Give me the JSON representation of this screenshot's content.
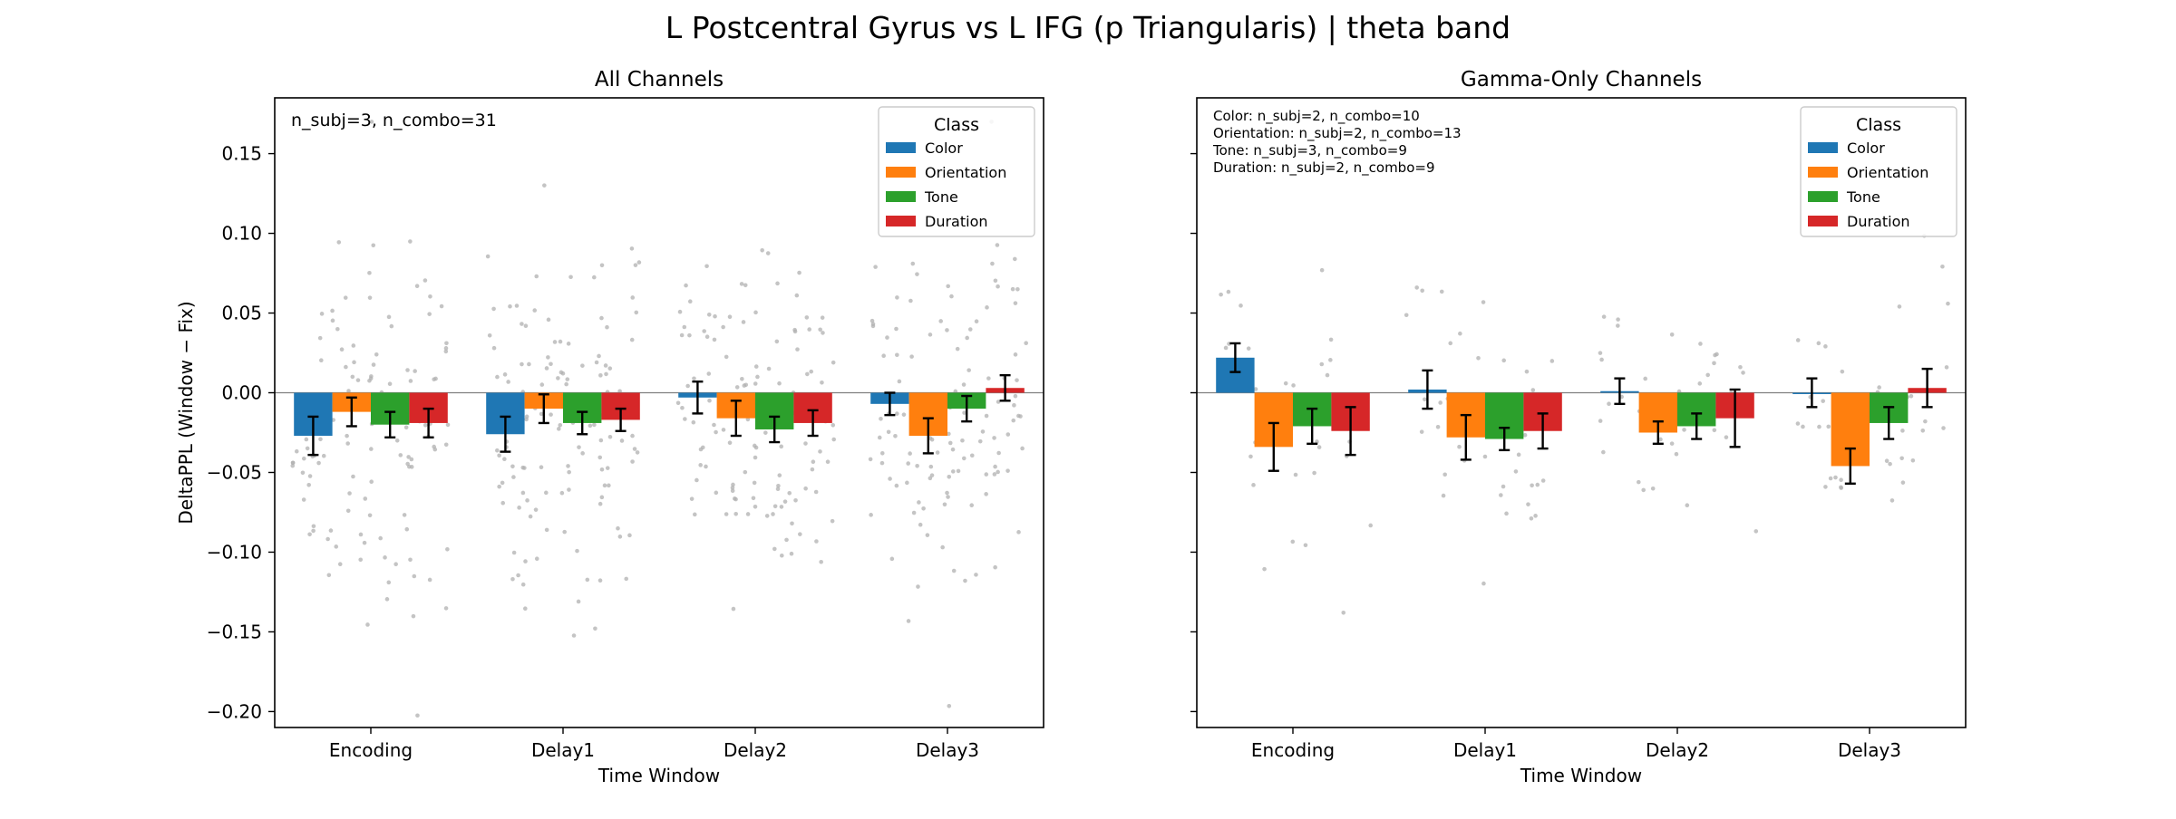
{
  "figure": {
    "title": "L Postcentral Gyrus vs L IFG (p Triangularis)  |  theta band"
  },
  "colors": {
    "Color": "#1f77b4",
    "Orientation": "#ff7f0e",
    "Tone": "#2ca02c",
    "Duration": "#d62728",
    "scatter": "#b0b0b0",
    "zero_line": "#808080"
  },
  "chart_data": [
    {
      "type": "bar",
      "title": "All Channels",
      "xlabel": "Time Window",
      "ylabel": "DeltaPPL (Window − Fix)",
      "ylim": [
        -0.21,
        0.185
      ],
      "yticks": [
        0.15,
        0.1,
        0.05,
        0.0,
        -0.05,
        -0.1,
        -0.15,
        -0.2
      ],
      "ytick_labels": [
        "0.15",
        "0.10",
        "0.05",
        "0.00",
        "−0.05",
        "−0.10",
        "−0.15",
        "−0.20"
      ],
      "categories": [
        "Encoding",
        "Delay1",
        "Delay2",
        "Delay3"
      ],
      "legend": {
        "title": "Class",
        "position": "top-right"
      },
      "annotation": [
        "n_subj=3, n_combo=31"
      ],
      "series": [
        {
          "name": "Color",
          "values": [
            -0.027,
            -0.026,
            -0.003,
            -0.007
          ],
          "errors": [
            0.012,
            0.011,
            0.01,
            0.007
          ]
        },
        {
          "name": "Orientation",
          "values": [
            -0.012,
            -0.01,
            -0.016,
            -0.027
          ],
          "errors": [
            0.009,
            0.009,
            0.011,
            0.011
          ]
        },
        {
          "name": "Tone",
          "values": [
            -0.02,
            -0.019,
            -0.023,
            -0.01
          ],
          "errors": [
            0.008,
            0.007,
            0.008,
            0.008
          ]
        },
        {
          "name": "Duration",
          "values": [
            -0.019,
            -0.017,
            -0.019,
            0.003
          ],
          "errors": [
            0.009,
            0.007,
            0.008,
            0.008
          ]
        }
      ],
      "scatter_count": 31,
      "scatter_spread": 0.055
    },
    {
      "type": "bar",
      "title": "Gamma-Only Channels",
      "xlabel": "Time Window",
      "ylabel": "",
      "ylim": [
        -0.21,
        0.185
      ],
      "yticks": [
        0.15,
        0.1,
        0.05,
        0.0,
        -0.05,
        -0.1,
        -0.15,
        -0.2
      ],
      "ytick_labels": [],
      "categories": [
        "Encoding",
        "Delay1",
        "Delay2",
        "Delay3"
      ],
      "legend": {
        "title": "Class",
        "position": "top-right"
      },
      "annotation": [
        "Color: n_subj=2, n_combo=10",
        "Orientation: n_subj=2, n_combo=13",
        "Tone: n_subj=3, n_combo=9",
        "Duration: n_subj=2, n_combo=9"
      ],
      "series": [
        {
          "name": "Color",
          "values": [
            0.022,
            0.002,
            0.001,
            0.0
          ],
          "errors": [
            0.009,
            0.012,
            0.008,
            0.009
          ]
        },
        {
          "name": "Orientation",
          "values": [
            -0.034,
            -0.028,
            -0.025,
            -0.046
          ],
          "errors": [
            0.015,
            0.014,
            0.007,
            0.011
          ]
        },
        {
          "name": "Tone",
          "values": [
            -0.021,
            -0.029,
            -0.021,
            -0.019
          ],
          "errors": [
            0.011,
            0.007,
            0.008,
            0.01
          ]
        },
        {
          "name": "Duration",
          "values": [
            -0.024,
            -0.024,
            -0.016,
            0.003
          ],
          "errors": [
            0.015,
            0.011,
            0.018,
            0.012
          ]
        }
      ],
      "scatter_count": 10,
      "scatter_spread": 0.04
    }
  ]
}
